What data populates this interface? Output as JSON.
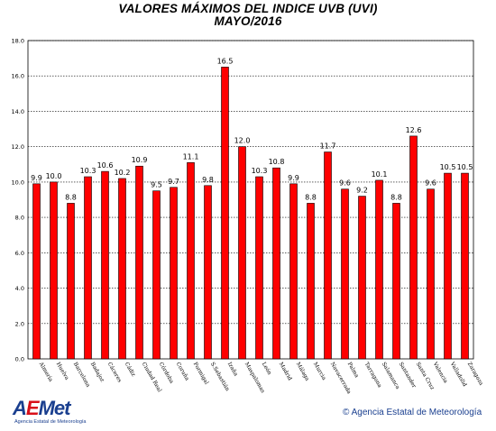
{
  "header": {
    "title_line1": "VALORES MÁXIMOS DEL INDICE UVB (UVI)",
    "title_line2": "MAYO/2016"
  },
  "footer": {
    "logo_text_a": "A",
    "logo_text_e": "E",
    "logo_text_rest": "Met",
    "logo_subtitle": "Agencia Estatal de Meteorología",
    "copyright": "© Agencia Estatal de Meteorología"
  },
  "colors": {
    "bar_fill": "#ff0000",
    "bar_stroke": "#000000",
    "grid": "#000000",
    "brand_blue": "#1a3f8f",
    "brand_red": "#d8101a"
  },
  "chart_data": {
    "type": "bar",
    "title": "VALORES MÁXIMOS DEL INDICE UVB (UVI)",
    "subtitle": "MAYO/2016",
    "xlabel": "",
    "ylabel": "",
    "ylim": [
      0,
      18
    ],
    "yticks": [
      "0.0",
      "2.0",
      "4.0",
      "6.0",
      "8.0",
      "10.0",
      "12.0",
      "14.0",
      "16.0",
      "18.0"
    ],
    "grid": true,
    "legend": "none",
    "categories": [
      "Almería",
      "Huelva",
      "Barcelona",
      "Badajoz",
      "Cáceres",
      "Cádiz",
      "Ciudad Real",
      "Córdoba",
      "Coruña",
      "Formigal",
      "S.Sebastián",
      "Izaña",
      "Maspalomas",
      "León",
      "Madrid",
      "Málaga",
      "Murcia",
      "Navacerrada",
      "Palma",
      "Tarragona",
      "Salamanca",
      "Santander",
      "Santa Cruz",
      "Valencia",
      "Valladolid",
      "Zaragoza"
    ],
    "values": [
      9.9,
      10.0,
      8.8,
      10.3,
      10.6,
      10.2,
      10.9,
      9.5,
      9.7,
      11.1,
      9.8,
      16.5,
      12.0,
      10.3,
      10.8,
      9.9,
      8.8,
      11.7,
      9.6,
      9.2,
      10.1,
      8.8,
      12.6,
      9.6,
      10.5,
      10.5
    ],
    "value_labels": [
      "9.9",
      "10.0",
      "8.8",
      "10.3",
      "10.6",
      "10.2",
      "10.9",
      "9.5",
      "9.7",
      "11.1",
      "9.8",
      "16.5",
      "12.0",
      "10.3",
      "10.8",
      "9.9",
      "8.8",
      "11.7",
      "9.6",
      "9.2",
      "10.1",
      "8.8",
      "12.6",
      "9.6",
      "10.5",
      "10.5"
    ]
  }
}
